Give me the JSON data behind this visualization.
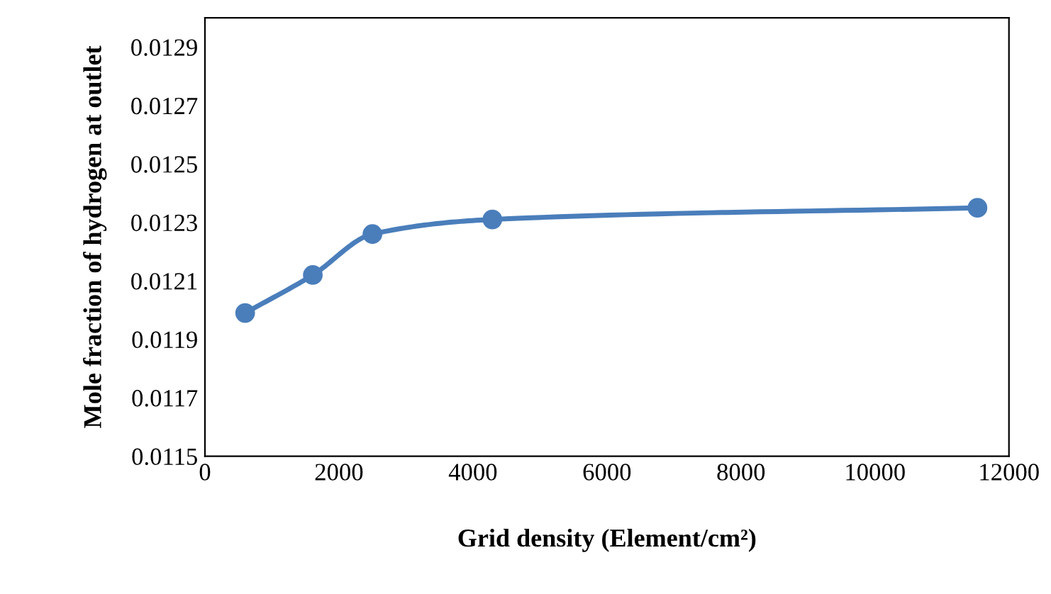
{
  "chart_data": {
    "type": "line",
    "xlabel": "Grid density (Element/cm²)",
    "ylabel": "Mole fraction of hydrogen at outlet",
    "x": [
      600,
      1610,
      2500,
      4290,
      11530
    ],
    "series": [
      {
        "color": "#4a7ebb",
        "values": [
          0.01199,
          0.01212,
          0.01226,
          0.01231,
          0.01235
        ]
      }
    ],
    "xlim": [
      0,
      12000
    ],
    "xticks": [
      0,
      2000,
      4000,
      6000,
      8000,
      10000,
      12000
    ],
    "ylim": [
      0.0115,
      0.013
    ],
    "yticks": [
      0.0115,
      0.0117,
      0.0119,
      0.0121,
      0.0123,
      0.0125,
      0.0127,
      0.0129
    ],
    "grid": false,
    "legend": false,
    "marker": "circle",
    "line_style": "solid"
  }
}
